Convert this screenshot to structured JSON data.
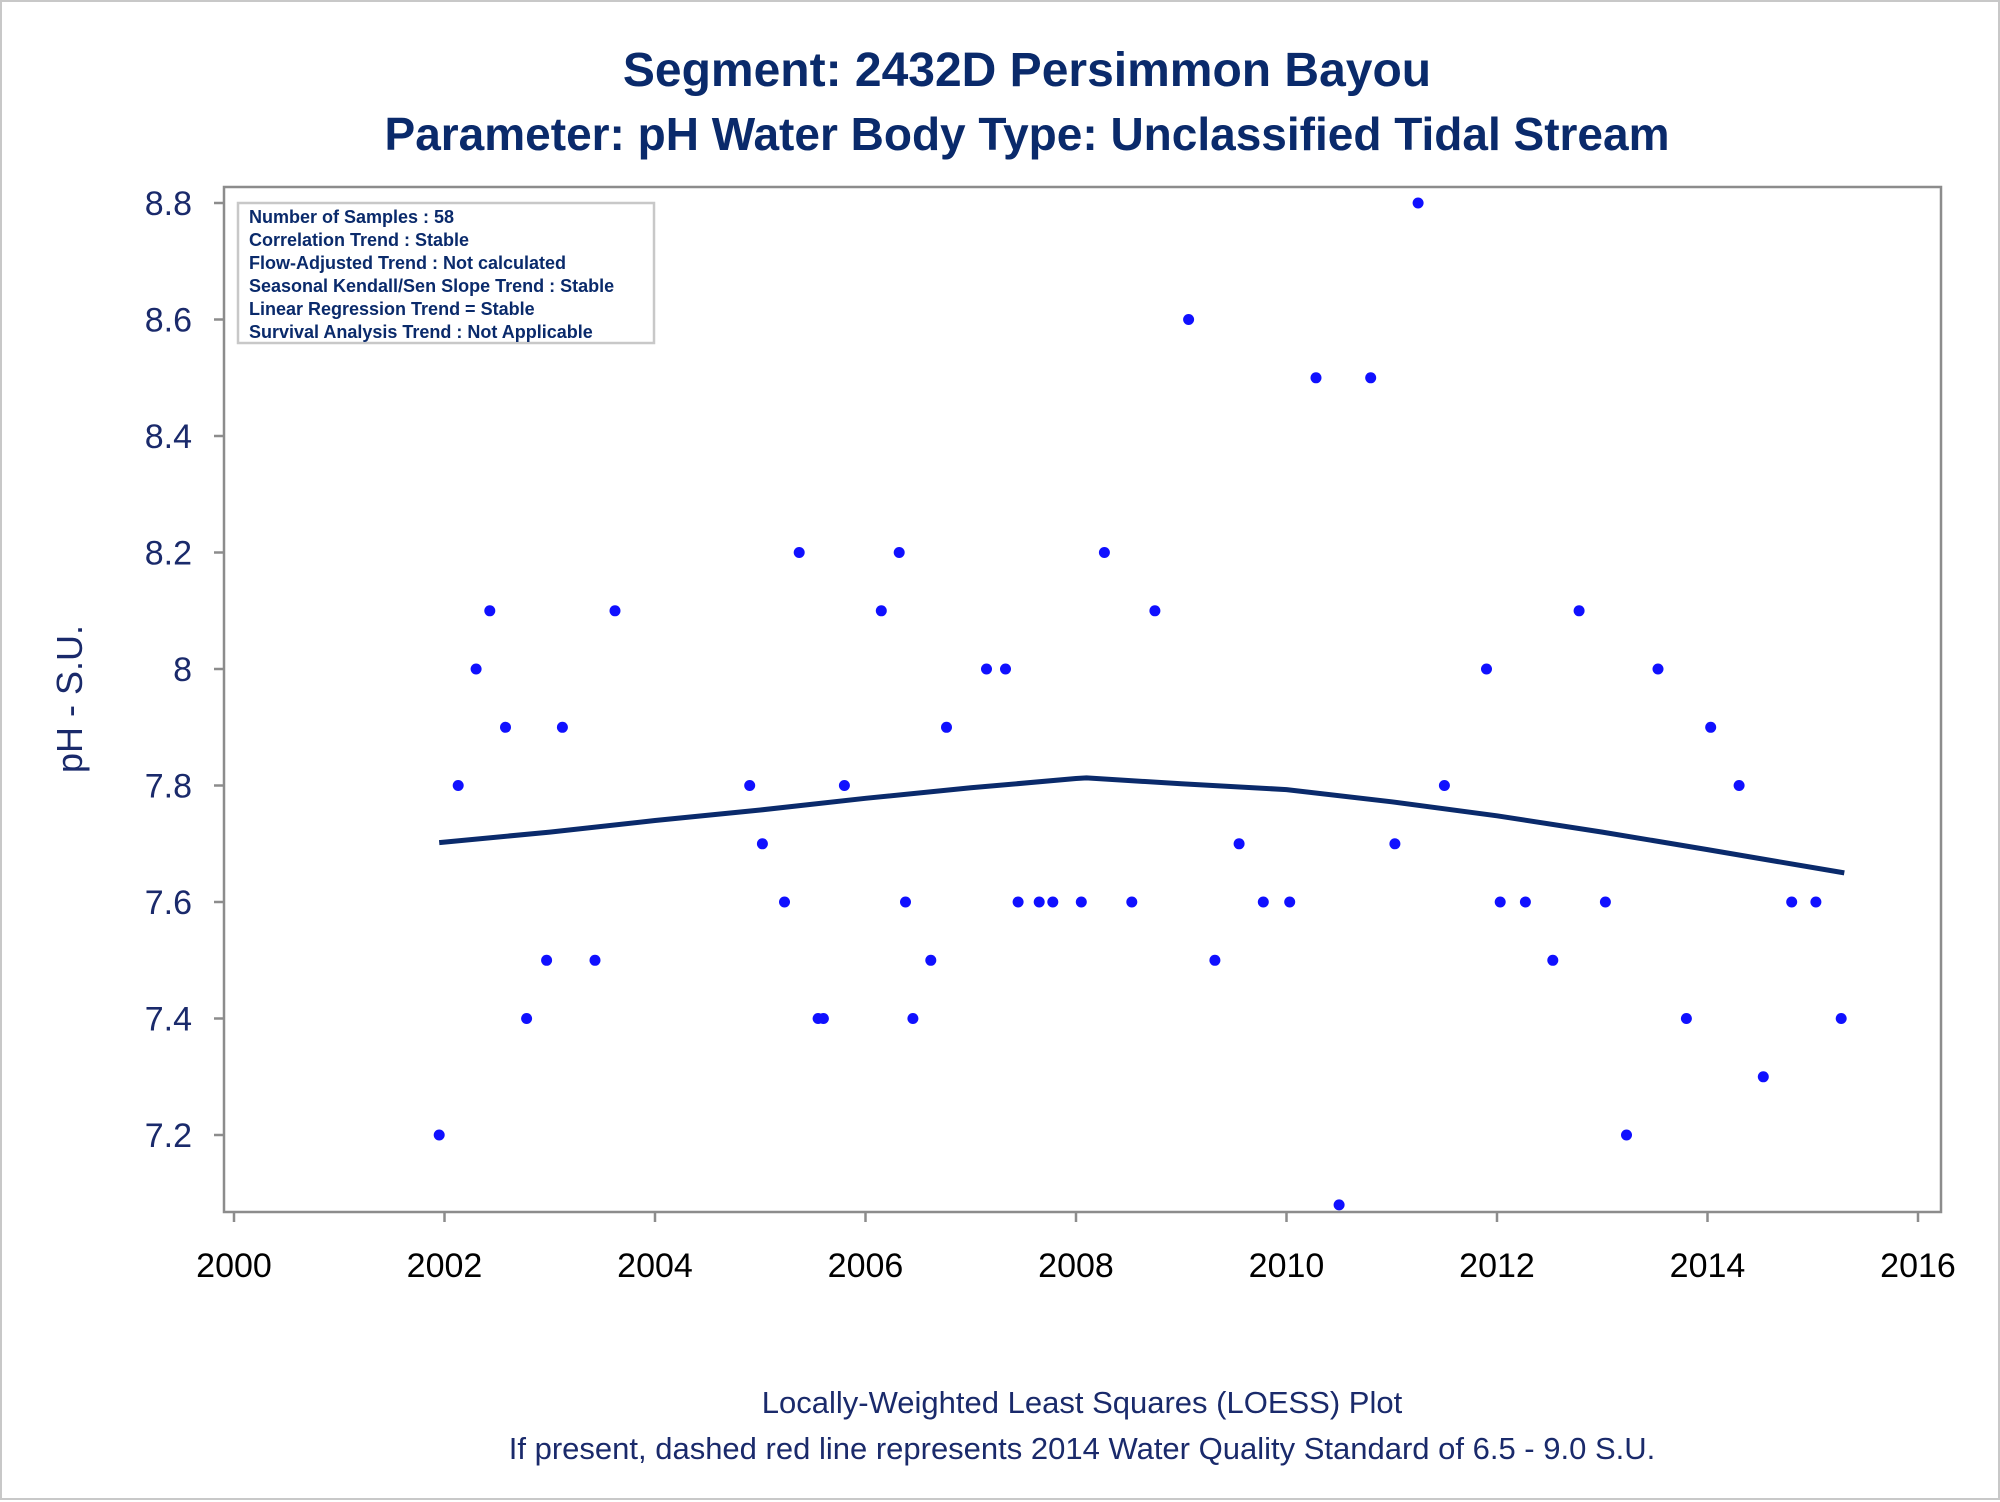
{
  "chart_data": {
    "type": "scatter",
    "title": "Segment: 2432D  Persimmon Bayou",
    "subtitle": "Parameter: pH   Water Body Type: Unclassified Tidal Stream",
    "xlabel": "",
    "ylabel": "pH - S.U.",
    "xlim": [
      2000,
      2016
    ],
    "ylim": [
      7.07,
      8.83
    ],
    "x_ticks": [
      2000,
      2002,
      2004,
      2006,
      2008,
      2010,
      2012,
      2014,
      2016
    ],
    "y_ticks": [
      7.2,
      7.4,
      7.6,
      7.8,
      8.0,
      8.2,
      8.4,
      8.6,
      8.8
    ],
    "y_tick_labels": [
      "7.2",
      "7.4",
      "7.6",
      "7.8",
      "8",
      "8.2",
      "8.4",
      "8.6",
      "8.8"
    ],
    "grid": false,
    "colors": {
      "points": "#1010ff",
      "loess": "#0a2a6b",
      "frame": "#8c8c8c",
      "text": "#0a2a6b"
    },
    "series": [
      {
        "type": "scatter",
        "points": [
          [
            2001.95,
            7.2
          ],
          [
            2002.13,
            7.8
          ],
          [
            2002.3,
            8.0
          ],
          [
            2002.43,
            8.1
          ],
          [
            2002.58,
            7.9
          ],
          [
            2002.78,
            7.4
          ],
          [
            2002.97,
            7.5
          ],
          [
            2003.12,
            7.9
          ],
          [
            2003.43,
            7.5
          ],
          [
            2003.62,
            8.1
          ],
          [
            2004.9,
            7.8
          ],
          [
            2005.02,
            7.7
          ],
          [
            2005.23,
            7.6
          ],
          [
            2005.37,
            8.2
          ],
          [
            2005.55,
            7.4
          ],
          [
            2005.6,
            7.4
          ],
          [
            2005.8,
            7.8
          ],
          [
            2006.15,
            8.1
          ],
          [
            2006.32,
            8.2
          ],
          [
            2006.38,
            7.6
          ],
          [
            2006.45,
            7.4
          ],
          [
            2006.62,
            7.5
          ],
          [
            2006.77,
            7.9
          ],
          [
            2007.15,
            8.0
          ],
          [
            2007.33,
            8.0
          ],
          [
            2007.45,
            7.6
          ],
          [
            2007.65,
            7.6
          ],
          [
            2007.78,
            7.6
          ],
          [
            2008.05,
            7.6
          ],
          [
            2008.27,
            8.2
          ],
          [
            2008.53,
            7.6
          ],
          [
            2008.75,
            8.1
          ],
          [
            2009.07,
            8.6
          ],
          [
            2009.32,
            7.5
          ],
          [
            2009.55,
            7.7
          ],
          [
            2009.78,
            7.6
          ],
          [
            2010.03,
            7.6
          ],
          [
            2010.28,
            8.5
          ],
          [
            2010.5,
            7.08
          ],
          [
            2010.8,
            8.5
          ],
          [
            2011.03,
            7.7
          ],
          [
            2011.25,
            8.8
          ],
          [
            2011.5,
            7.8
          ],
          [
            2011.9,
            8.0
          ],
          [
            2012.03,
            7.6
          ],
          [
            2012.27,
            7.6
          ],
          [
            2012.53,
            7.5
          ],
          [
            2012.78,
            8.1
          ],
          [
            2013.03,
            7.6
          ],
          [
            2013.23,
            7.2
          ],
          [
            2013.53,
            8.0
          ],
          [
            2013.8,
            7.4
          ],
          [
            2014.03,
            7.9
          ],
          [
            2014.3,
            7.8
          ],
          [
            2014.53,
            7.3
          ],
          [
            2014.8,
            7.6
          ],
          [
            2015.03,
            7.6
          ],
          [
            2015.27,
            7.4
          ]
        ]
      },
      {
        "type": "line",
        "points": [
          [
            2001.95,
            7.702
          ],
          [
            2003.0,
            7.72
          ],
          [
            2004.0,
            7.74
          ],
          [
            2005.0,
            7.758
          ],
          [
            2006.0,
            7.778
          ],
          [
            2007.0,
            7.796
          ],
          [
            2008.0,
            7.812
          ],
          [
            2008.1,
            7.813
          ],
          [
            2009.0,
            7.803
          ],
          [
            2010.0,
            7.793
          ],
          [
            2011.0,
            7.772
          ],
          [
            2012.0,
            7.748
          ],
          [
            2013.0,
            7.72
          ],
          [
            2014.0,
            7.69
          ],
          [
            2015.3,
            7.65
          ]
        ]
      }
    ]
  },
  "stats_box": {
    "lines": [
      "Number of Samples : 58",
      "Correlation Trend : Stable",
      "Flow-Adjusted Trend : Not calculated",
      "Seasonal Kendall/Sen Slope Trend : Stable",
      "Linear Regression Trend = Stable",
      "Survival Analysis Trend : Not Applicable"
    ]
  },
  "footnotes": [
    "Locally-Weighted Least Squares (LOESS) Plot",
    "If present, dashed red line represents 2014 Water Quality Standard of 6.5 - 9.0 S.U."
  ]
}
